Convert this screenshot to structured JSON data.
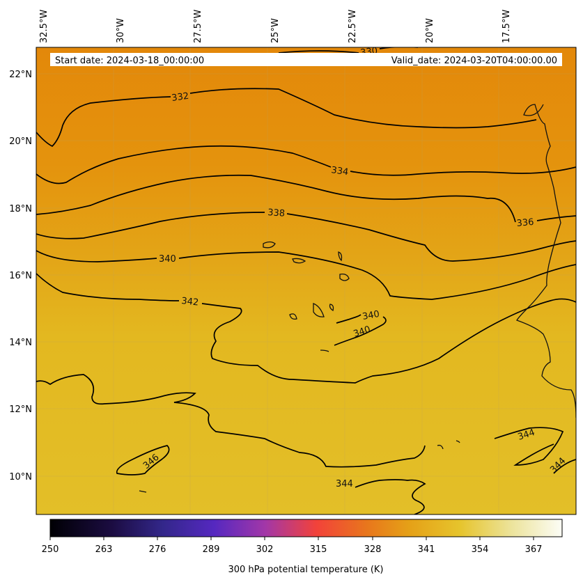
{
  "map": {
    "start_date": "Start date: 2024-03-18_00:00:00",
    "valid_date": "Valid_date: 2024-03-20T04:00:00.00",
    "lon_labels": [
      "32.5°W",
      "30°W",
      "27.5°W",
      "25°W",
      "22.5°W",
      "20°W",
      "17.5°W"
    ],
    "lat_labels": [
      "22°N",
      "20°N",
      "18°N",
      "16°N",
      "14°N",
      "12°N",
      "10°N"
    ],
    "contour_labels": [
      "330",
      "332",
      "334",
      "336",
      "338",
      "340",
      "342",
      "340",
      "340",
      "344",
      "344",
      "344",
      "346"
    ],
    "colors": {
      "field_north": "#e3880a",
      "field_mid": "#e3a215",
      "field_south": "#e3bd26",
      "contour": "#000000"
    }
  },
  "colorbar": {
    "label": "300 hPa potential temperature (K)",
    "ticks": [
      "250",
      "263",
      "276",
      "289",
      "302",
      "315",
      "328",
      "341",
      "354",
      "367"
    ]
  }
}
